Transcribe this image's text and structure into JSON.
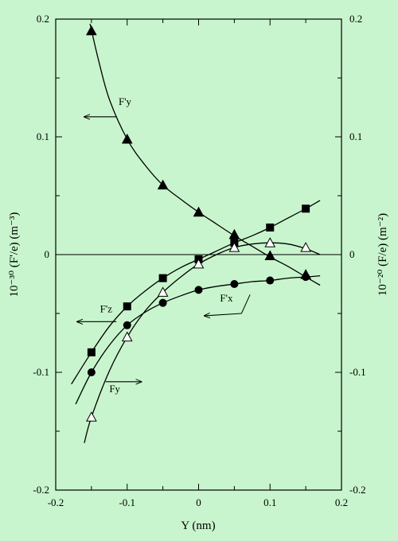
{
  "chart_data": {
    "type": "scatter",
    "xlabel": "Y (nm)",
    "ylabel_left": "10⁻³⁰ (F'/e) (m⁻³)",
    "ylabel_right": "10⁻²⁰ (F/e) (m⁻²)",
    "xlim": [
      -0.2,
      0.2
    ],
    "ylim": [
      -0.2,
      0.2
    ],
    "x_ticks": [
      -0.2,
      -0.1,
      0,
      0.1,
      0.2
    ],
    "x_tick_labels": [
      "-0.2",
      "-0.1",
      "0",
      "0.1",
      "0.2"
    ],
    "y_ticks": [
      -0.2,
      -0.1,
      0,
      0.1,
      0.2
    ],
    "y_tick_labels": [
      "-0.2",
      "-0.1",
      "0",
      "0.1",
      "0.2"
    ],
    "grid": false,
    "zero_line": true,
    "series": [
      {
        "name": "F'y",
        "marker": "triangle-filled",
        "axis": "left",
        "x": [
          -0.15,
          -0.1,
          -0.05,
          0,
          0.05,
          0.1,
          0.15
        ],
        "y": [
          0.19,
          0.098,
          0.059,
          0.036,
          0.017,
          -0.001,
          -0.017
        ],
        "fit_x": [
          -0.152,
          -0.14,
          -0.125,
          -0.1,
          -0.075,
          -0.05,
          -0.025,
          0,
          0.025,
          0.05,
          0.075,
          0.1,
          0.125,
          0.15,
          0.17
        ],
        "fit_y": [
          0.196,
          0.165,
          0.132,
          0.098,
          0.076,
          0.059,
          0.047,
          0.036,
          0.026,
          0.016,
          0.007,
          -0.002,
          -0.01,
          -0.019,
          -0.026
        ]
      },
      {
        "name": "F'z",
        "marker": "square-filled",
        "axis": "left",
        "x": [
          -0.15,
          -0.1,
          -0.05,
          0,
          0.05,
          0.1,
          0.15
        ],
        "y": [
          -0.083,
          -0.044,
          -0.02,
          -0.004,
          0.01,
          0.023,
          0.039
        ],
        "fit_x": [
          -0.178,
          -0.15,
          -0.125,
          -0.1,
          -0.075,
          -0.05,
          -0.025,
          0,
          0.025,
          0.05,
          0.075,
          0.1,
          0.125,
          0.15,
          0.17
        ],
        "fit_y": [
          -0.11,
          -0.083,
          -0.061,
          -0.044,
          -0.031,
          -0.02,
          -0.011,
          -0.004,
          0.003,
          0.01,
          0.016,
          0.023,
          0.031,
          0.039,
          0.046
        ]
      },
      {
        "name": "F'x",
        "marker": "circle-filled",
        "axis": "left",
        "x": [
          -0.15,
          -0.1,
          -0.05,
          0,
          0.05,
          0.1,
          0.15
        ],
        "y": [
          -0.1,
          -0.06,
          -0.041,
          -0.03,
          -0.025,
          -0.022,
          -0.019
        ],
        "fit_x": [
          -0.172,
          -0.15,
          -0.125,
          -0.1,
          -0.075,
          -0.05,
          -0.025,
          0,
          0.025,
          0.05,
          0.075,
          0.1,
          0.125,
          0.15,
          0.17
        ],
        "fit_y": [
          -0.127,
          -0.1,
          -0.077,
          -0.06,
          -0.049,
          -0.041,
          -0.035,
          -0.03,
          -0.027,
          -0.025,
          -0.023,
          -0.022,
          -0.02,
          -0.019,
          -0.018
        ]
      },
      {
        "name": "Fy",
        "marker": "triangle-open",
        "axis": "right",
        "x": [
          -0.15,
          -0.1,
          -0.05,
          0,
          0.05,
          0.1,
          0.15
        ],
        "y": [
          -0.138,
          -0.07,
          -0.032,
          -0.008,
          0.006,
          0.01,
          0.006
        ],
        "fit_x": [
          -0.16,
          -0.15,
          -0.125,
          -0.1,
          -0.075,
          -0.05,
          -0.025,
          0,
          0.025,
          0.05,
          0.075,
          0.1,
          0.125,
          0.15,
          0.17
        ],
        "fit_y": [
          -0.16,
          -0.138,
          -0.099,
          -0.07,
          -0.048,
          -0.032,
          -0.019,
          -0.008,
          0.0,
          0.006,
          0.009,
          0.01,
          0.009,
          0.005,
          0.0
        ]
      }
    ],
    "annotations": [
      {
        "text": "F'y",
        "x": -0.112,
        "y": 0.127,
        "arrow_from": [
          -0.115,
          0.117
        ],
        "arrow_to": [
          -0.16,
          0.117
        ],
        "direction": "left"
      },
      {
        "text": "F'z",
        "x": -0.138,
        "y": -0.049,
        "arrow_from": [
          -0.115,
          -0.057
        ],
        "arrow_to": [
          -0.17,
          -0.057
        ],
        "direction": "left"
      },
      {
        "text": "F'x",
        "x": 0.03,
        "y": -0.04,
        "arrow_from": [
          0.06,
          -0.05
        ],
        "arrow_to": [
          0.008,
          -0.052
        ],
        "leader": [
          [
            0.06,
            -0.05
          ],
          [
            0.072,
            -0.034
          ]
        ],
        "direction": "left"
      },
      {
        "text": "Fy",
        "x": -0.125,
        "y": -0.117,
        "arrow_from": [
          -0.13,
          -0.108
        ],
        "arrow_to": [
          -0.08,
          -0.108
        ],
        "direction": "right"
      }
    ]
  }
}
